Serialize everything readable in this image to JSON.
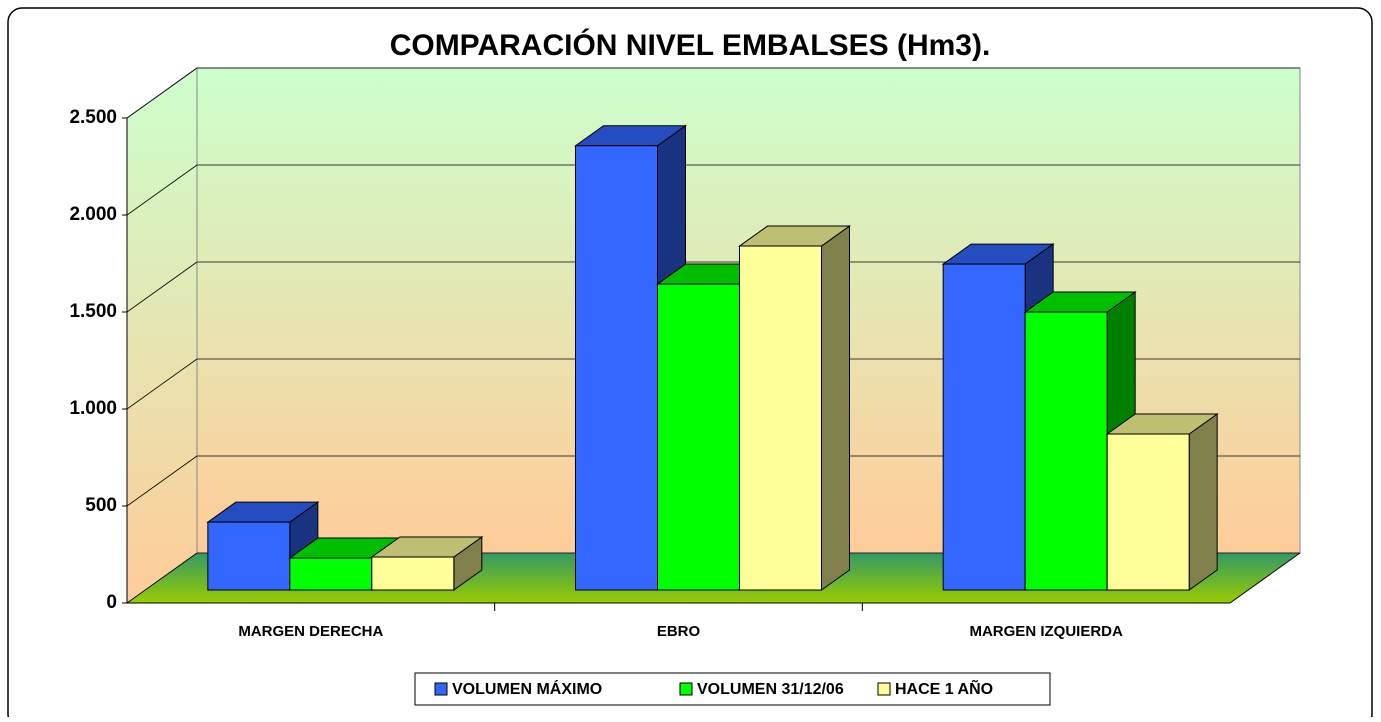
{
  "chart_data": {
    "type": "bar3d",
    "title": "COMPARACIÓN NIVEL EMBALSES (Hm3).",
    "categories": [
      "MARGEN DERECHA",
      "EBRO",
      "MARGEN IZQUIERDA"
    ],
    "series": [
      {
        "name": "VOLUMEN MÁXIMO",
        "color": "#3366ff",
        "values": [
          350,
          2290,
          1680
        ]
      },
      {
        "name": "VOLUMEN 31/12/06",
        "color": "#00ff00",
        "values": [
          165,
          1577,
          1433
        ]
      },
      {
        "name": "HACE 1 AÑO",
        "color": "#ffff99",
        "values": [
          170,
          1773,
          804
        ]
      }
    ],
    "ylim": [
      0,
      2500
    ],
    "yticks": [
      0,
      500,
      {
        "value": 1000,
        "label": "1.000"
      },
      {
        "value": 1500,
        "label": "1.500"
      },
      {
        "value": 2000,
        "label": "2.000"
      },
      {
        "value": 2500,
        "label": "2.500"
      }
    ],
    "grid": true,
    "legend": "bottom"
  }
}
